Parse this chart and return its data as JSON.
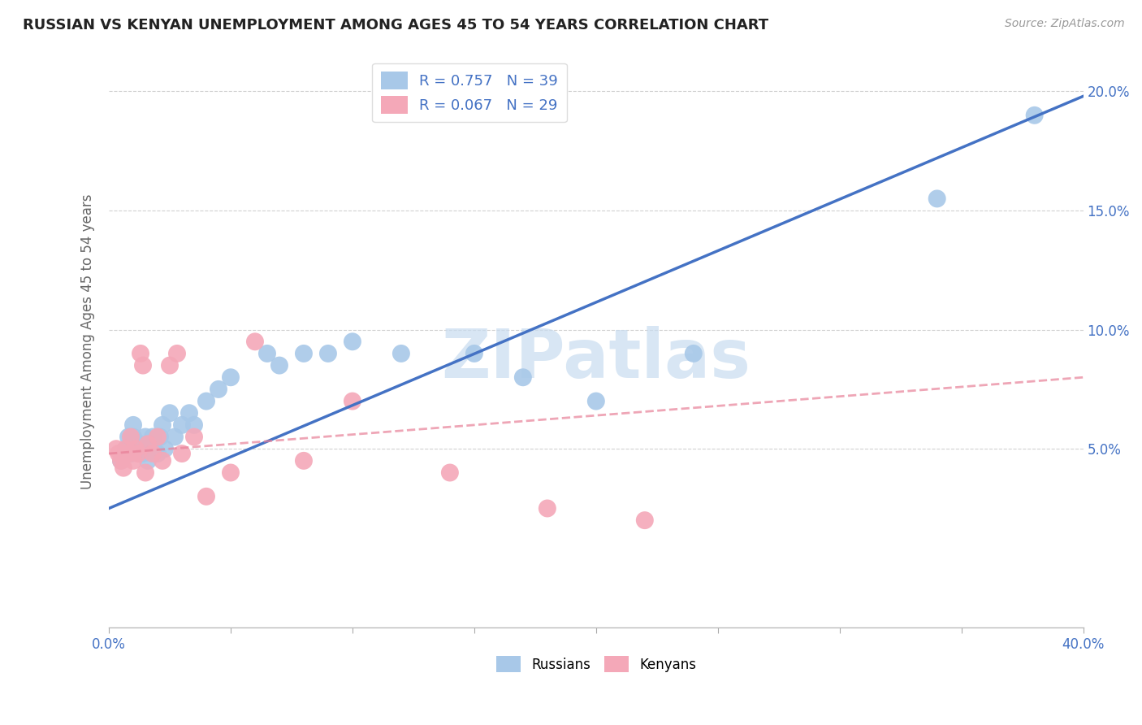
{
  "title": "RUSSIAN VS KENYAN UNEMPLOYMENT AMONG AGES 45 TO 54 YEARS CORRELATION CHART",
  "source": "Source: ZipAtlas.com",
  "ylabel": "Unemployment Among Ages 45 to 54 years",
  "xlim": [
    0.0,
    0.4
  ],
  "ylim": [
    -0.025,
    0.215
  ],
  "xticks": [
    0.0,
    0.05,
    0.1,
    0.15,
    0.2,
    0.25,
    0.3,
    0.35,
    0.4
  ],
  "ytick_positions": [
    0.05,
    0.1,
    0.15,
    0.2
  ],
  "ytick_labels": [
    "5.0%",
    "10.0%",
    "15.0%",
    "20.0%"
  ],
  "russian_R": 0.757,
  "russian_N": 39,
  "kenyan_R": 0.067,
  "kenyan_N": 29,
  "russian_color": "#A8C8E8",
  "kenyan_color": "#F4A8B8",
  "russian_line_color": "#4472C4",
  "kenyan_line_color": "#E88098",
  "watermark_color": "#C8DCF0",
  "background_color": "#FFFFFF",
  "russian_x": [
    0.005,
    0.007,
    0.008,
    0.009,
    0.01,
    0.01,
    0.01,
    0.012,
    0.013,
    0.014,
    0.015,
    0.015,
    0.016,
    0.017,
    0.018,
    0.02,
    0.021,
    0.022,
    0.023,
    0.025,
    0.027,
    0.03,
    0.033,
    0.035,
    0.04,
    0.045,
    0.05,
    0.065,
    0.07,
    0.08,
    0.09,
    0.1,
    0.12,
    0.15,
    0.17,
    0.2,
    0.24,
    0.34,
    0.38
  ],
  "russian_y": [
    0.045,
    0.05,
    0.055,
    0.048,
    0.05,
    0.055,
    0.06,
    0.05,
    0.052,
    0.048,
    0.05,
    0.055,
    0.045,
    0.05,
    0.055,
    0.048,
    0.055,
    0.06,
    0.05,
    0.065,
    0.055,
    0.06,
    0.065,
    0.06,
    0.07,
    0.075,
    0.08,
    0.09,
    0.085,
    0.09,
    0.09,
    0.095,
    0.09,
    0.09,
    0.08,
    0.07,
    0.09,
    0.155,
    0.19
  ],
  "kenyan_x": [
    0.003,
    0.004,
    0.005,
    0.006,
    0.007,
    0.008,
    0.009,
    0.01,
    0.011,
    0.012,
    0.013,
    0.014,
    0.015,
    0.016,
    0.018,
    0.02,
    0.022,
    0.025,
    0.028,
    0.03,
    0.035,
    0.04,
    0.05,
    0.06,
    0.08,
    0.1,
    0.14,
    0.18,
    0.22
  ],
  "kenyan_y": [
    0.05,
    0.048,
    0.045,
    0.042,
    0.05,
    0.048,
    0.055,
    0.045,
    0.05,
    0.048,
    0.09,
    0.085,
    0.04,
    0.052,
    0.048,
    0.055,
    0.045,
    0.085,
    0.09,
    0.048,
    0.055,
    0.03,
    0.04,
    0.095,
    0.045,
    0.07,
    0.04,
    0.025,
    0.02
  ],
  "kenyan_line_start_y": 0.048,
  "kenyan_line_end_y": 0.08,
  "russian_line_start_y": 0.025,
  "russian_line_end_y": 0.198
}
